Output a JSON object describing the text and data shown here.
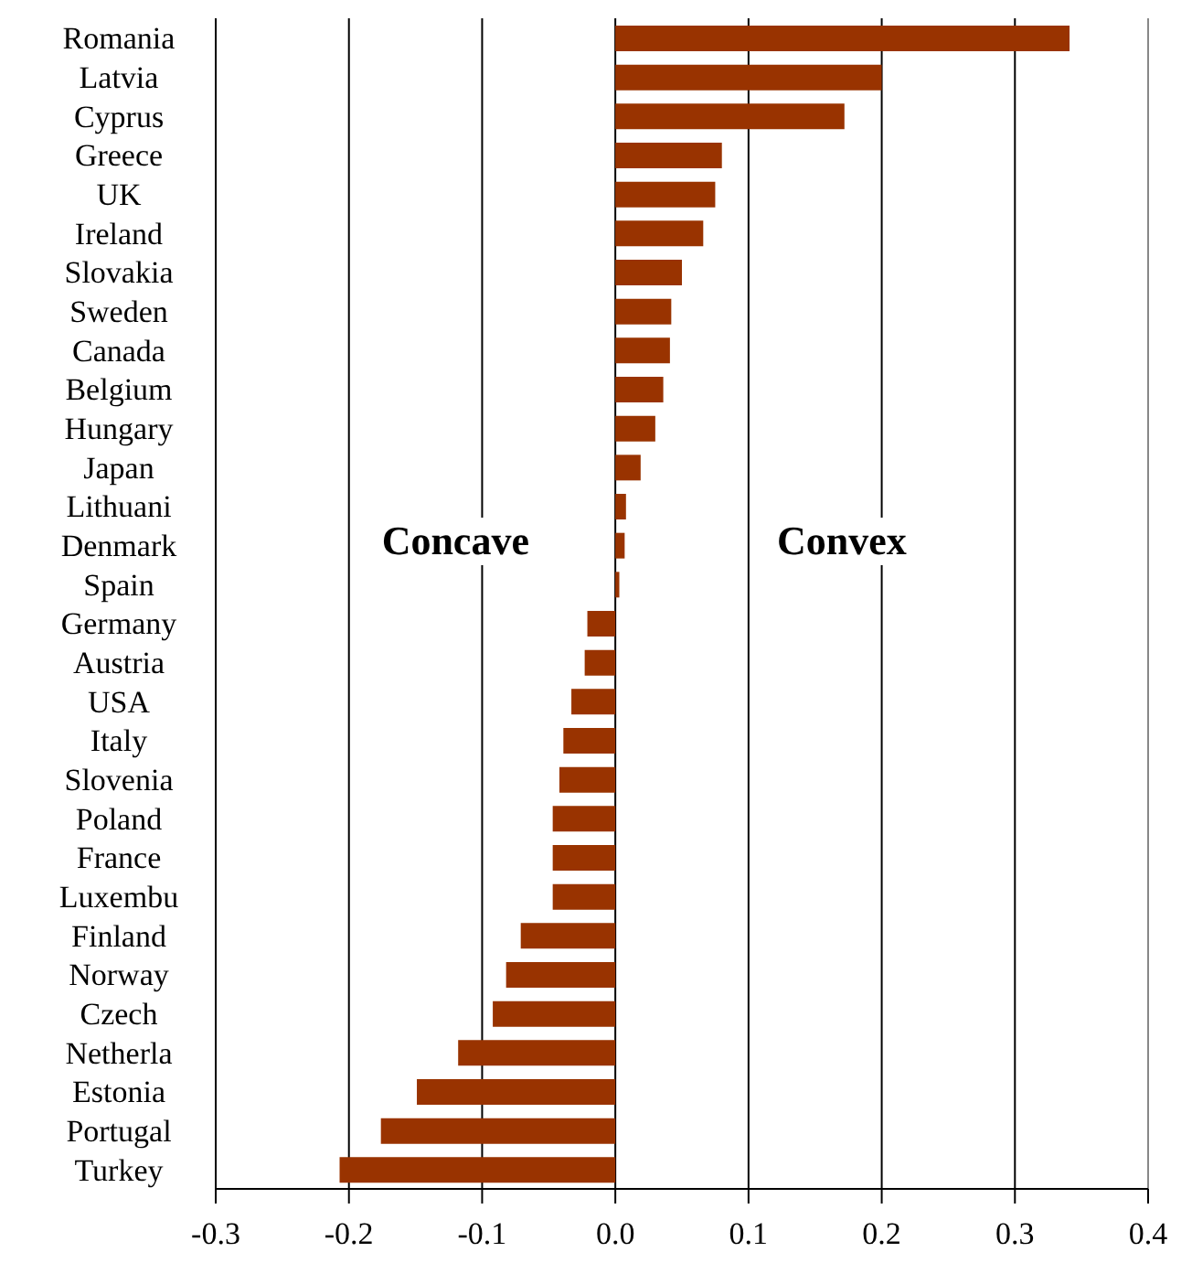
{
  "chart_data": {
    "type": "bar",
    "orientation": "horizontal",
    "categories": [
      "Romania",
      "Latvia",
      "Cyprus",
      "Greece",
      "UK",
      "Ireland",
      "Slovakia",
      "Sweden",
      "Canada",
      "Belgium",
      "Hungary",
      "Japan",
      "Lithuani",
      "Denmark",
      "Spain",
      "Germany",
      "Austria",
      "USA",
      "Italy",
      "Slovenia",
      "Poland",
      "France",
      "Luxembu",
      "Finland",
      "Norway",
      "Czech",
      "Netherla",
      "Estonia",
      "Portugal",
      "Turkey"
    ],
    "values": [
      0.341,
      0.2,
      0.172,
      0.08,
      0.075,
      0.066,
      0.05,
      0.042,
      0.041,
      0.036,
      0.03,
      0.019,
      0.008,
      0.007,
      0.003,
      -0.021,
      -0.023,
      -0.033,
      -0.039,
      -0.042,
      -0.047,
      -0.047,
      -0.047,
      -0.071,
      -0.082,
      -0.092,
      -0.118,
      -0.149,
      -0.176,
      -0.207
    ],
    "color": "#993300",
    "xlim": [
      -0.3,
      0.4
    ],
    "xticks": [
      {
        "value": -0.3,
        "label": "-0.3"
      },
      {
        "value": -0.2,
        "label": "-0.2"
      },
      {
        "value": -0.1,
        "label": "-0.1"
      },
      {
        "value": 0,
        "label": "0.0"
      },
      {
        "value": 0.1,
        "label": "0.1"
      },
      {
        "value": 0.2,
        "label": "0.2"
      },
      {
        "value": 0.3,
        "label": "0.3"
      },
      {
        "value": 0.4,
        "label": "0.4"
      }
    ],
    "grid": "x",
    "annotations": [
      "Concave",
      "Convex"
    ]
  }
}
